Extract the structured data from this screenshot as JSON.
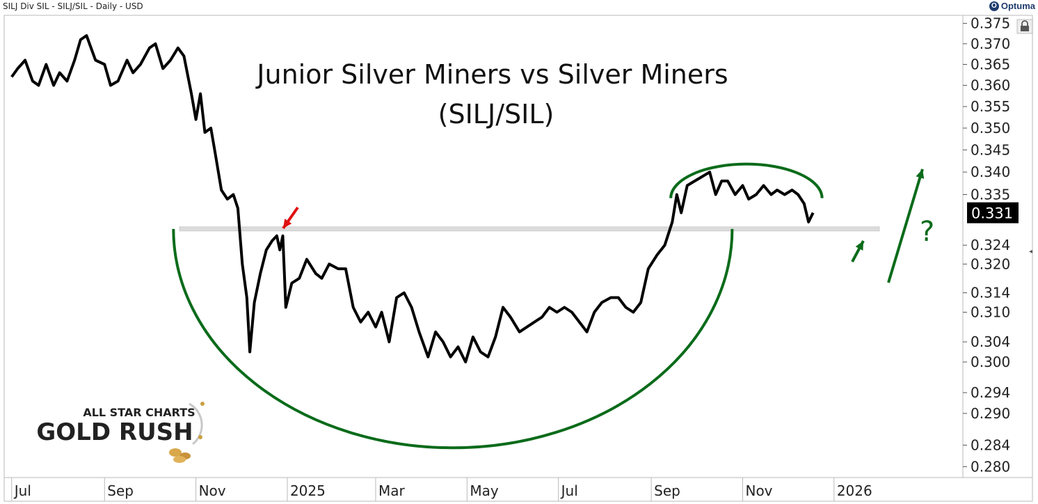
{
  "header": {
    "left_text": "SILJ Div SIL - SILJ/SIL - Daily - USD",
    "brand": "Optuma"
  },
  "chart_data": {
    "type": "line",
    "title": "Junior Silver Miners vs Silver Miners",
    "subtitle": "(SILJ/SIL)",
    "xlabel": "",
    "ylabel": "",
    "x_ticks": [
      "Jul",
      "Sep",
      "Nov",
      "2025",
      "Mar",
      "May",
      "Jul",
      "Sep",
      "Nov",
      "2026"
    ],
    "y_ticks": [
      0.375,
      0.37,
      0.365,
      0.36,
      0.355,
      0.35,
      0.345,
      0.34,
      0.335,
      0.324,
      0.32,
      0.314,
      0.31,
      0.304,
      0.3,
      0.294,
      0.29,
      0.284,
      0.28
    ],
    "y_tick_labels": [
      "0.375",
      "0.370",
      "0.365",
      "0.360",
      "0.355",
      "0.350",
      "0.345",
      "0.340",
      "0.335",
      "0.324",
      "0.320",
      "0.314",
      "0.310",
      "0.304",
      "0.300",
      "0.294",
      "0.290",
      "0.284",
      "0.280"
    ],
    "ylim": [
      0.278,
      0.377
    ],
    "y_scale": "log",
    "last_value": 0.331,
    "last_value_label": "0.331",
    "support_level": 0.3275,
    "grid": false,
    "colors": {
      "line": "#000000",
      "arc": "#0a6b1a",
      "arrow_red": "#e01010",
      "arrow_green": "#0a6b1a",
      "support": "#dcdcdc"
    },
    "series": [
      {
        "values": [
          [
            "2024-07-01",
            0.362
          ],
          [
            "2024-07-05",
            0.364
          ],
          [
            "2024-07-10",
            0.366
          ],
          [
            "2024-07-15",
            0.361
          ],
          [
            "2024-07-19",
            0.36
          ],
          [
            "2024-07-24",
            0.365
          ],
          [
            "2024-07-29",
            0.36
          ],
          [
            "2024-08-02",
            0.363
          ],
          [
            "2024-08-07",
            0.361
          ],
          [
            "2024-08-12",
            0.366
          ],
          [
            "2024-08-16",
            0.371
          ],
          [
            "2024-08-20",
            0.372
          ],
          [
            "2024-08-26",
            0.366
          ],
          [
            "2024-09-01",
            0.365
          ],
          [
            "2024-09-05",
            0.36
          ],
          [
            "2024-09-10",
            0.361
          ],
          [
            "2024-09-16",
            0.366
          ],
          [
            "2024-09-20",
            0.363
          ],
          [
            "2024-09-25",
            0.365
          ],
          [
            "2024-10-01",
            0.369
          ],
          [
            "2024-10-05",
            0.37
          ],
          [
            "2024-10-10",
            0.364
          ],
          [
            "2024-10-15",
            0.366
          ],
          [
            "2024-10-20",
            0.369
          ],
          [
            "2024-10-24",
            0.367
          ],
          [
            "2024-10-29",
            0.358
          ],
          [
            "2024-11-01",
            0.352
          ],
          [
            "2024-11-04",
            0.358
          ],
          [
            "2024-11-07",
            0.349
          ],
          [
            "2024-11-11",
            0.35
          ],
          [
            "2024-11-14",
            0.344
          ],
          [
            "2024-11-18",
            0.336
          ],
          [
            "2024-11-22",
            0.334
          ],
          [
            "2024-11-26",
            0.335
          ],
          [
            "2024-11-29",
            0.332
          ],
          [
            "2024-12-02",
            0.32
          ],
          [
            "2024-12-05",
            0.313
          ],
          [
            "2024-12-07",
            0.302
          ],
          [
            "2024-12-10",
            0.312
          ],
          [
            "2024-12-14",
            0.318
          ],
          [
            "2024-12-18",
            0.323
          ],
          [
            "2024-12-22",
            0.325
          ],
          [
            "2024-12-25",
            0.326
          ],
          [
            "2024-12-27",
            0.323
          ],
          [
            "2024-12-29",
            0.326
          ],
          [
            "2024-12-31",
            0.311
          ],
          [
            "2025-01-04",
            0.316
          ],
          [
            "2025-01-09",
            0.317
          ],
          [
            "2025-01-14",
            0.321
          ],
          [
            "2025-01-20",
            0.318
          ],
          [
            "2025-01-24",
            0.317
          ],
          [
            "2025-01-29",
            0.32
          ],
          [
            "2025-02-04",
            0.319
          ],
          [
            "2025-02-09",
            0.319
          ],
          [
            "2025-02-14",
            0.311
          ],
          [
            "2025-02-19",
            0.308
          ],
          [
            "2025-02-24",
            0.31
          ],
          [
            "2025-03-01",
            0.307
          ],
          [
            "2025-03-05",
            0.31
          ],
          [
            "2025-03-10",
            0.304
          ],
          [
            "2025-03-15",
            0.313
          ],
          [
            "2025-03-20",
            0.314
          ],
          [
            "2025-03-25",
            0.311
          ],
          [
            "2025-03-30",
            0.306
          ],
          [
            "2025-04-05",
            0.301
          ],
          [
            "2025-04-10",
            0.306
          ],
          [
            "2025-04-15",
            0.304
          ],
          [
            "2025-04-20",
            0.301
          ],
          [
            "2025-04-25",
            0.303
          ],
          [
            "2025-04-30",
            0.3
          ],
          [
            "2025-05-05",
            0.305
          ],
          [
            "2025-05-10",
            0.302
          ],
          [
            "2025-05-15",
            0.301
          ],
          [
            "2025-05-20",
            0.305
          ],
          [
            "2025-05-25",
            0.311
          ],
          [
            "2025-05-30",
            0.309
          ],
          [
            "2025-06-05",
            0.306
          ],
          [
            "2025-06-10",
            0.307
          ],
          [
            "2025-06-15",
            0.308
          ],
          [
            "2025-06-20",
            0.309
          ],
          [
            "2025-06-25",
            0.311
          ],
          [
            "2025-06-30",
            0.31
          ],
          [
            "2025-07-05",
            0.311
          ],
          [
            "2025-07-10",
            0.31
          ],
          [
            "2025-07-15",
            0.308
          ],
          [
            "2025-07-20",
            0.306
          ],
          [
            "2025-07-25",
            0.31
          ],
          [
            "2025-07-30",
            0.312
          ],
          [
            "2025-08-05",
            0.313
          ],
          [
            "2025-08-10",
            0.313
          ],
          [
            "2025-08-15",
            0.311
          ],
          [
            "2025-08-20",
            0.31
          ],
          [
            "2025-08-25",
            0.312
          ],
          [
            "2025-08-30",
            0.319
          ],
          [
            "2025-09-05",
            0.322
          ],
          [
            "2025-09-10",
            0.324
          ],
          [
            "2025-09-15",
            0.329
          ],
          [
            "2025-09-18",
            0.335
          ],
          [
            "2025-09-21",
            0.331
          ],
          [
            "2025-09-25",
            0.337
          ],
          [
            "2025-09-30",
            0.338
          ],
          [
            "2025-10-05",
            0.339
          ],
          [
            "2025-10-10",
            0.34
          ],
          [
            "2025-10-14",
            0.335
          ],
          [
            "2025-10-18",
            0.338
          ],
          [
            "2025-10-22",
            0.338
          ],
          [
            "2025-10-27",
            0.335
          ],
          [
            "2025-11-01",
            0.337
          ],
          [
            "2025-11-05",
            0.334
          ],
          [
            "2025-11-10",
            0.335
          ],
          [
            "2025-11-15",
            0.337
          ],
          [
            "2025-11-20",
            0.335
          ],
          [
            "2025-11-24",
            0.336
          ],
          [
            "2025-11-29",
            0.335
          ],
          [
            "2025-12-04",
            0.336
          ],
          [
            "2025-12-08",
            0.335
          ],
          [
            "2025-12-12",
            0.333
          ],
          [
            "2025-12-15",
            0.329
          ],
          [
            "2025-12-18",
            0.331
          ]
        ]
      }
    ],
    "annotations": {
      "question_mark": "?"
    }
  },
  "watermark": {
    "line1": "ALL STAR CHARTS",
    "line2": "GOLD RUSH"
  }
}
